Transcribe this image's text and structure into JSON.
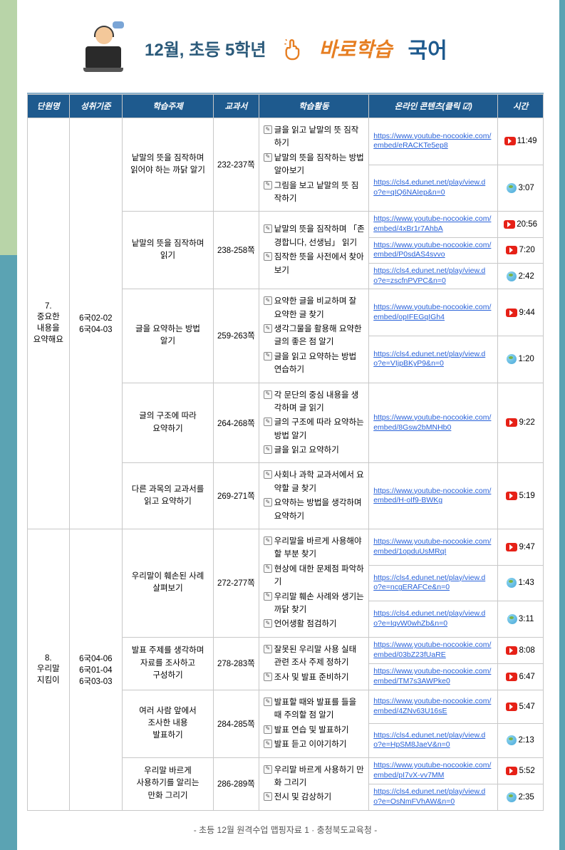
{
  "header": {
    "main": "12월, 초등 5학년",
    "sub": "바로학습",
    "subject": "국어"
  },
  "columns": [
    "단원명",
    "성취기준",
    "학습주제",
    "교과서",
    "학습활동",
    "온라인 콘텐츠(클릭 ☑)",
    "시간"
  ],
  "units": [
    {
      "name": "7.\n중요한\n내용을\n요약해요",
      "std": "6국02-02\n6국04-03",
      "topics": [
        {
          "topic": "낱말의 뜻을 짐작하며\n읽어야 하는 까닭 알기",
          "page": "232-237쪽",
          "activities": [
            "글을 읽고 낱말의 뜻 짐작하기",
            "낱말의 뜻을 짐작하는 방법 알아보기",
            "그림을 보고 낱말의 뜻 짐작하기"
          ],
          "links": [
            {
              "url": "https://www.youtube-nocookie.com/embed/eRACKTe5ep8",
              "time": "11:49",
              "type": "yt"
            },
            {
              "url": "https://cls4.edunet.net/play/view.do?e=qIQ6NAIep&n=0",
              "time": "3:07",
              "type": "web"
            }
          ]
        },
        {
          "topic": "낱말의 뜻을 짐작하며\n읽기",
          "page": "238-258쪽",
          "activities": [
            "낱말의 뜻을 짐작하며 「존경합니다, 선생님」 읽기",
            "짐작한 뜻을 사전에서 찾아보기"
          ],
          "links": [
            {
              "url": "https://www.youtube-nocookie.com/embed/4xBr1r7AhbA",
              "time": "20:56",
              "type": "yt"
            },
            {
              "url": "https://www.youtube-nocookie.com/embed/P0sdAS4svvo",
              "time": "7:20",
              "type": "yt"
            },
            {
              "url": "https://cls4.edunet.net/play/view.do?e=zscfnPVPC&n=0",
              "time": "2:42",
              "type": "web"
            }
          ]
        },
        {
          "topic": "글을 요약하는 방법\n알기",
          "page": "259-263쪽",
          "activities": [
            "요약한 글을 비교하며 잘 요약한 글 찾기",
            "생각그물을 활용해 요약한 글의 좋은 점 알기",
            "글을 읽고 요약하는 방법 연습하기"
          ],
          "links": [
            {
              "url": "https://www.youtube-nocookie.com/embed/opIFEGqIGh4",
              "time": "9:44",
              "type": "yt"
            },
            {
              "url": "https://cls4.edunet.net/play/view.do?e=VIjpBKyP9&n=0",
              "time": "1:20",
              "type": "web"
            }
          ]
        },
        {
          "topic": "글의 구조에 따라\n요약하기",
          "page": "264-268쪽",
          "activities": [
            "각 문단의 중심 내용을 생각하며 글 읽기",
            "글의 구조에 따라 요약하는 방법 알기",
            "글을 읽고 요약하기"
          ],
          "links": [
            {
              "url": "https://www.youtube-nocookie.com/embed/8Gsw2bMNHb0",
              "time": "9:22",
              "type": "yt"
            }
          ]
        },
        {
          "topic": "다른 과목의 교과서를\n읽고 요약하기",
          "page": "269-271쪽",
          "activities": [
            "사회나 과학 교과서에서 요약할 글 찾기",
            "요약하는 방법을 생각하며 요약하기"
          ],
          "links": [
            {
              "url": "https://www.youtube-nocookie.com/embed/H-oIf9-BWKg",
              "time": "5:19",
              "type": "yt"
            }
          ]
        }
      ]
    },
    {
      "name": "8.\n우리말\n지킴이",
      "std": "6국04-06\n6국01-04\n6국03-03",
      "topics": [
        {
          "topic": "우리말이 훼손된 사례\n살펴보기",
          "page": "272-277쪽",
          "activities": [
            "우리말을 바르게 사용해야 할 부분 찾기",
            "현상에 대한 문제점 파악하기",
            "우리말 훼손 사례와 생기는 까닭 찾기",
            "언어생활 점검하기"
          ],
          "links": [
            {
              "url": "https://www.youtube-nocookie.com/embed/1opduUsMRqI",
              "time": "9:47",
              "type": "yt"
            },
            {
              "url": "https://cls4.edunet.net/play/view.do?e=ncgERAFCe&n=0",
              "time": "1:43",
              "type": "web"
            },
            {
              "url": "https://cls4.edunet.net/play/view.do?e=IqvW0whZb&n=0",
              "time": "3:11",
              "type": "web"
            }
          ]
        },
        {
          "topic": "발표 주제를 생각하며\n자료를 조사하고\n구성하기",
          "page": "278-283쪽",
          "activities": [
            "잘못된 우리말 사용 실태 관련 조사 주제 정하기",
            "조사 및 발표 준비하기"
          ],
          "links": [
            {
              "url": "https://www.youtube-nocookie.com/embed/03bZ23fUaRE",
              "time": "8:08",
              "type": "yt"
            },
            {
              "url": "https://www.youtube-nocookie.com/embed/TM7s3AWPke0",
              "time": "6:47",
              "type": "yt"
            }
          ]
        },
        {
          "topic": "여러 사람 앞에서\n조사한 내용\n발표하기",
          "page": "284-285쪽",
          "activities": [
            "발표할 때와 발표를 들을 때 주의할 점 알기",
            "발표 연습 및 발표하기",
            "발표 듣고 이야기하기"
          ],
          "links": [
            {
              "url": "https://www.youtube-nocookie.com/embed/4ZNv63U16sE",
              "time": "5:47",
              "type": "yt"
            },
            {
              "url": "https://cls4.edunet.net/play/view.do?e=HpSM8JaeV&n=0",
              "time": "2:13",
              "type": "web"
            }
          ]
        },
        {
          "topic": "우리말 바르게\n사용하기를 알리는\n만화 그리기",
          "page": "286-289쪽",
          "activities": [
            "우리말 바르게 사용하기 만화 그리기",
            "전시 및 감상하기"
          ],
          "links": [
            {
              "url": "https://www.youtube-nocookie.com/embed/pI7vX-vv7MM",
              "time": "5:52",
              "type": "yt"
            },
            {
              "url": "https://cls4.edunet.net/play/view.do?e=OsNmFVhAW&n=0",
              "time": "2:35",
              "type": "web"
            }
          ]
        }
      ]
    }
  ],
  "footer": "- 초등 12월 원격수업 맵핑자료 1 · 충청북도교육청 -",
  "colors": {
    "header_bg": "#1e5a8e",
    "accent": "#e67e22",
    "link": "#2962d9"
  }
}
